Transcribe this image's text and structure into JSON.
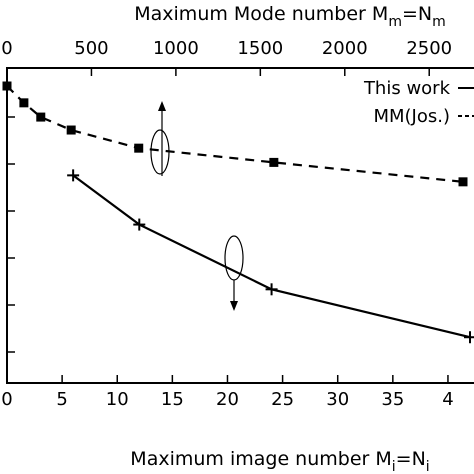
{
  "chart_data": {
    "type": "line",
    "top_axis": {
      "label_prefix": "Maximum Mode number M",
      "label_sub1": "m",
      "label_mid": "=N",
      "label_sub2": "m",
      "ticks": [
        0,
        500,
        1000,
        1500,
        2000,
        2500
      ]
    },
    "bottom_axis": {
      "label_prefix": "Maximum image number M",
      "label_sub1": "i",
      "label_mid": "=N",
      "label_sub2": "i",
      "ticks": [
        "0",
        "5",
        "10",
        "15",
        "20",
        "25",
        "30",
        "35",
        "4"
      ]
    },
    "series": [
      {
        "name": "This work",
        "axis": "bottom",
        "x": [
          6,
          12,
          24,
          42
        ],
        "y": [
          0.655,
          0.465,
          0.215,
          0.03
        ]
      },
      {
        "name": "MM(Jos.)",
        "axis": "top",
        "x": [
          0,
          100,
          200,
          380,
          780,
          1580,
          2700
        ],
        "y": [
          1.0,
          0.935,
          0.88,
          0.83,
          0.76,
          0.705,
          0.63
        ]
      }
    ],
    "xlim_bottom": [
      0,
      42
    ],
    "xlim_top": [
      0,
      2700
    ],
    "ylim": [
      0,
      1
    ],
    "legend": {
      "placement": "top-right",
      "entries": [
        "This work",
        "MM(Jos.)"
      ]
    },
    "grid": false
  }
}
